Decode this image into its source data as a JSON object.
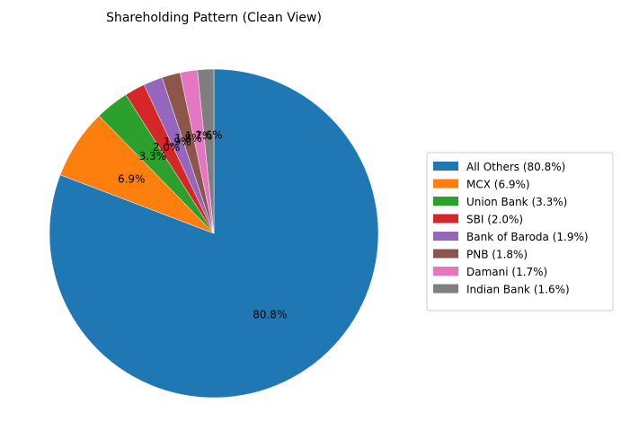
{
  "chart_data": {
    "type": "pie",
    "title": "Shareholding Pattern (Clean View)",
    "legend_position": "right",
    "start_angle_deg": 90,
    "direction": "clockwise",
    "slices": [
      {
        "label": "All Others (80.8%)",
        "value": 80.8,
        "pct_label": "80.8%",
        "color": "#1f77b4"
      },
      {
        "label": "MCX (6.9%)",
        "value": 6.9,
        "pct_label": "6.9%",
        "color": "#ff7f0e"
      },
      {
        "label": "Union Bank (3.3%)",
        "value": 3.3,
        "pct_label": "3.3%",
        "color": "#2ca02c"
      },
      {
        "label": "SBI (2.0%)",
        "value": 2.0,
        "pct_label": "2.0%",
        "color": "#d62728"
      },
      {
        "label": "Bank of Baroda (1.9%)",
        "value": 1.9,
        "pct_label": "1.9%",
        "color": "#9467bd"
      },
      {
        "label": "PNB (1.8%)",
        "value": 1.8,
        "pct_label": "1.8%",
        "color": "#8c564b"
      },
      {
        "label": "Damani (1.7%)",
        "value": 1.7,
        "pct_label": "1.7%",
        "color": "#e377c2"
      },
      {
        "label": "Indian Bank (1.6%)",
        "value": 1.6,
        "pct_label": "1.6%",
        "color": "#7f7f7f"
      }
    ]
  }
}
